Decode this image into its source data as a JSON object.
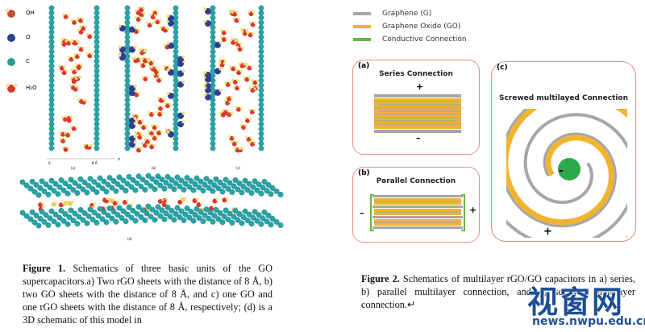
{
  "left_figure": {
    "legend": [
      {
        "label": "OH",
        "color": "#c0503d"
      },
      {
        "label": "O",
        "color": "#2e3f8f"
      },
      {
        "label": "C",
        "color": "#2a9a9a"
      },
      {
        "label": "H₂O",
        "color": "#d7382f"
      }
    ],
    "panel_labels": [
      "(a)",
      "(b)",
      "(c)",
      "(d)"
    ],
    "axis": {
      "ticks": [
        "0",
        "8 Å"
      ],
      "axis_label": "z"
    },
    "caption": {
      "figure_label": "Figure 1.",
      "text": " Schematics of three basic units of the GO supercapacitors.a) Two rGO sheets with the distance of 8 Å, b) two GO sheets with the distance of 8 Å, and c) one GO and one rGO sheets with the distance of 8 Å, respectively; (d) is a 3D schematic of this model in"
    }
  },
  "right_figure": {
    "legend": [
      {
        "label": "Graphene (G)",
        "color": "#a6a6a6"
      },
      {
        "label": "Graphene  Oxide (GO)",
        "color": "#f2b32f"
      },
      {
        "label": "Conductive Connection",
        "color": "#6cb33f"
      }
    ],
    "panels": {
      "a": {
        "tag": "(a)",
        "title": "Series Connection",
        "plus": "+",
        "minus": "–"
      },
      "b": {
        "tag": "(b)",
        "title": "Parallel Connection",
        "plus": "+",
        "minus": "–"
      },
      "c": {
        "tag": "(c)",
        "title": "Screwed multilayed Connection",
        "plus": "+",
        "minus": "-"
      }
    },
    "caption": {
      "figure_label": "Figure 2.",
      "text": " Schematics of multilayer rGO/GO capacitors in a) series, b) parallel multilayer connection, and c) screwed multilayer connection.↵"
    }
  },
  "watermark": {
    "title": "视窗网",
    "url": "news.nwpu.edu.cn"
  },
  "colors": {
    "graphene": "#a6a6a6",
    "go": "#f2b32f",
    "conductive": "#6cb33f",
    "panel_border": "#e48f86"
  }
}
